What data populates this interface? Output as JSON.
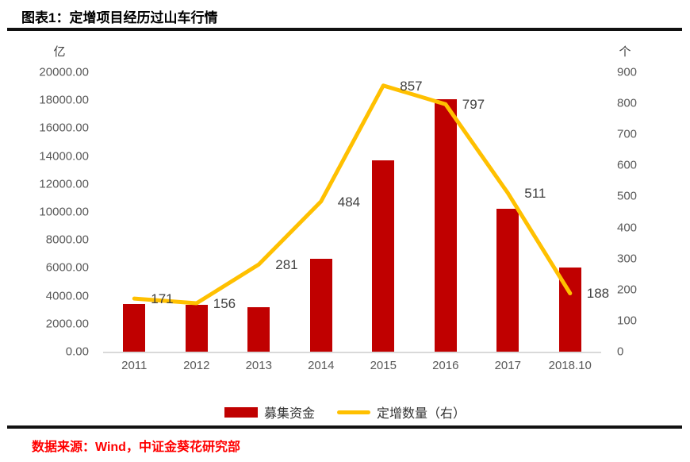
{
  "header": {
    "title": "图表1：定增项目经历过山车行情"
  },
  "chart_data": {
    "type": "bar+line",
    "title": "图表1：定增项目经历过山车行情",
    "categories": [
      "2011",
      "2012",
      "2013",
      "2014",
      "2015",
      "2016",
      "2017",
      "2018.10"
    ],
    "series": [
      {
        "name": "募集资金",
        "type": "bar",
        "axis": "left",
        "color": "#C00000",
        "values": [
          3400,
          3330,
          3200,
          6670,
          13690,
          18070,
          10210,
          6040
        ]
      },
      {
        "name": "定增数量（右）",
        "type": "line",
        "axis": "right",
        "color": "#FFC000",
        "values": [
          171,
          156,
          281,
          484,
          857,
          797,
          511,
          188
        ],
        "point_labels": [
          "171",
          "156",
          "281",
          "484",
          "857",
          "797",
          "511",
          "188"
        ]
      }
    ],
    "left_axis": {
      "unit": "亿",
      "min": 0,
      "max": 20000,
      "step": 2000,
      "tick_decimals": 2
    },
    "right_axis": {
      "unit": "个",
      "min": 0,
      "max": 900,
      "step": 100,
      "tick_decimals": 0
    },
    "legend_position": "bottom",
    "grid": false,
    "colors": {
      "bar": "#C00000",
      "line": "#FFC000",
      "tick_text": "#595959",
      "label_text": "#404040"
    }
  },
  "footer": {
    "source": "数据来源：Wind，中证金葵花研究部"
  }
}
